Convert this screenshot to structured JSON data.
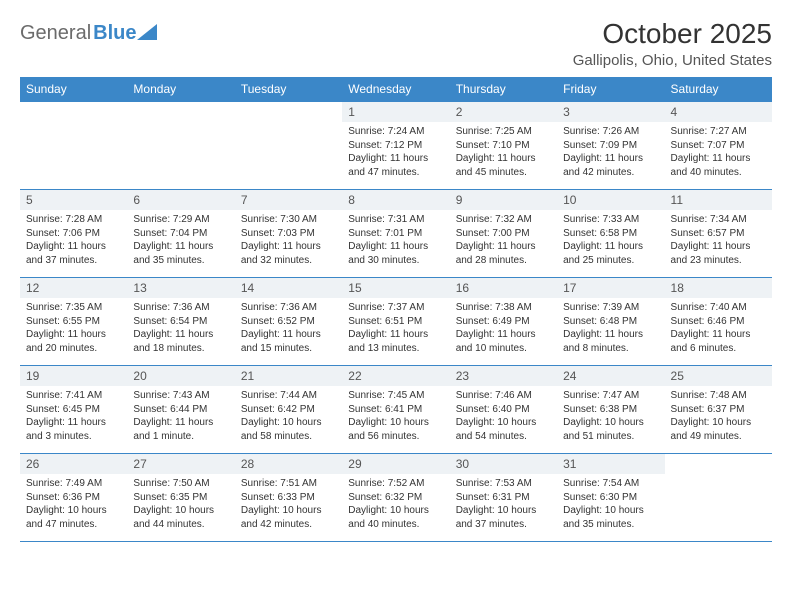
{
  "logo": {
    "text_gray": "General",
    "text_blue": "Blue"
  },
  "title": "October 2025",
  "location": "Gallipolis, Ohio, United States",
  "day_headers": [
    "Sunday",
    "Monday",
    "Tuesday",
    "Wednesday",
    "Thursday",
    "Friday",
    "Saturday"
  ],
  "colors": {
    "header_bg": "#3b87c8",
    "header_text": "#ffffff",
    "daynum_bg": "#eef2f5",
    "border": "#3b87c8",
    "logo_gray": "#6b6b6b",
    "logo_blue": "#3b87c8"
  },
  "weeks": [
    [
      null,
      null,
      null,
      {
        "n": "1",
        "sr": "7:24 AM",
        "ss": "7:12 PM",
        "dl": "11 hours and 47 minutes."
      },
      {
        "n": "2",
        "sr": "7:25 AM",
        "ss": "7:10 PM",
        "dl": "11 hours and 45 minutes."
      },
      {
        "n": "3",
        "sr": "7:26 AM",
        "ss": "7:09 PM",
        "dl": "11 hours and 42 minutes."
      },
      {
        "n": "4",
        "sr": "7:27 AM",
        "ss": "7:07 PM",
        "dl": "11 hours and 40 minutes."
      }
    ],
    [
      {
        "n": "5",
        "sr": "7:28 AM",
        "ss": "7:06 PM",
        "dl": "11 hours and 37 minutes."
      },
      {
        "n": "6",
        "sr": "7:29 AM",
        "ss": "7:04 PM",
        "dl": "11 hours and 35 minutes."
      },
      {
        "n": "7",
        "sr": "7:30 AM",
        "ss": "7:03 PM",
        "dl": "11 hours and 32 minutes."
      },
      {
        "n": "8",
        "sr": "7:31 AM",
        "ss": "7:01 PM",
        "dl": "11 hours and 30 minutes."
      },
      {
        "n": "9",
        "sr": "7:32 AM",
        "ss": "7:00 PM",
        "dl": "11 hours and 28 minutes."
      },
      {
        "n": "10",
        "sr": "7:33 AM",
        "ss": "6:58 PM",
        "dl": "11 hours and 25 minutes."
      },
      {
        "n": "11",
        "sr": "7:34 AM",
        "ss": "6:57 PM",
        "dl": "11 hours and 23 minutes."
      }
    ],
    [
      {
        "n": "12",
        "sr": "7:35 AM",
        "ss": "6:55 PM",
        "dl": "11 hours and 20 minutes."
      },
      {
        "n": "13",
        "sr": "7:36 AM",
        "ss": "6:54 PM",
        "dl": "11 hours and 18 minutes."
      },
      {
        "n": "14",
        "sr": "7:36 AM",
        "ss": "6:52 PM",
        "dl": "11 hours and 15 minutes."
      },
      {
        "n": "15",
        "sr": "7:37 AM",
        "ss": "6:51 PM",
        "dl": "11 hours and 13 minutes."
      },
      {
        "n": "16",
        "sr": "7:38 AM",
        "ss": "6:49 PM",
        "dl": "11 hours and 10 minutes."
      },
      {
        "n": "17",
        "sr": "7:39 AM",
        "ss": "6:48 PM",
        "dl": "11 hours and 8 minutes."
      },
      {
        "n": "18",
        "sr": "7:40 AM",
        "ss": "6:46 PM",
        "dl": "11 hours and 6 minutes."
      }
    ],
    [
      {
        "n": "19",
        "sr": "7:41 AM",
        "ss": "6:45 PM",
        "dl": "11 hours and 3 minutes."
      },
      {
        "n": "20",
        "sr": "7:43 AM",
        "ss": "6:44 PM",
        "dl": "11 hours and 1 minute."
      },
      {
        "n": "21",
        "sr": "7:44 AM",
        "ss": "6:42 PM",
        "dl": "10 hours and 58 minutes."
      },
      {
        "n": "22",
        "sr": "7:45 AM",
        "ss": "6:41 PM",
        "dl": "10 hours and 56 minutes."
      },
      {
        "n": "23",
        "sr": "7:46 AM",
        "ss": "6:40 PM",
        "dl": "10 hours and 54 minutes."
      },
      {
        "n": "24",
        "sr": "7:47 AM",
        "ss": "6:38 PM",
        "dl": "10 hours and 51 minutes."
      },
      {
        "n": "25",
        "sr": "7:48 AM",
        "ss": "6:37 PM",
        "dl": "10 hours and 49 minutes."
      }
    ],
    [
      {
        "n": "26",
        "sr": "7:49 AM",
        "ss": "6:36 PM",
        "dl": "10 hours and 47 minutes."
      },
      {
        "n": "27",
        "sr": "7:50 AM",
        "ss": "6:35 PM",
        "dl": "10 hours and 44 minutes."
      },
      {
        "n": "28",
        "sr": "7:51 AM",
        "ss": "6:33 PM",
        "dl": "10 hours and 42 minutes."
      },
      {
        "n": "29",
        "sr": "7:52 AM",
        "ss": "6:32 PM",
        "dl": "10 hours and 40 minutes."
      },
      {
        "n": "30",
        "sr": "7:53 AM",
        "ss": "6:31 PM",
        "dl": "10 hours and 37 minutes."
      },
      {
        "n": "31",
        "sr": "7:54 AM",
        "ss": "6:30 PM",
        "dl": "10 hours and 35 minutes."
      },
      null
    ]
  ],
  "labels": {
    "sunrise": "Sunrise:",
    "sunset": "Sunset:",
    "daylight": "Daylight:"
  }
}
